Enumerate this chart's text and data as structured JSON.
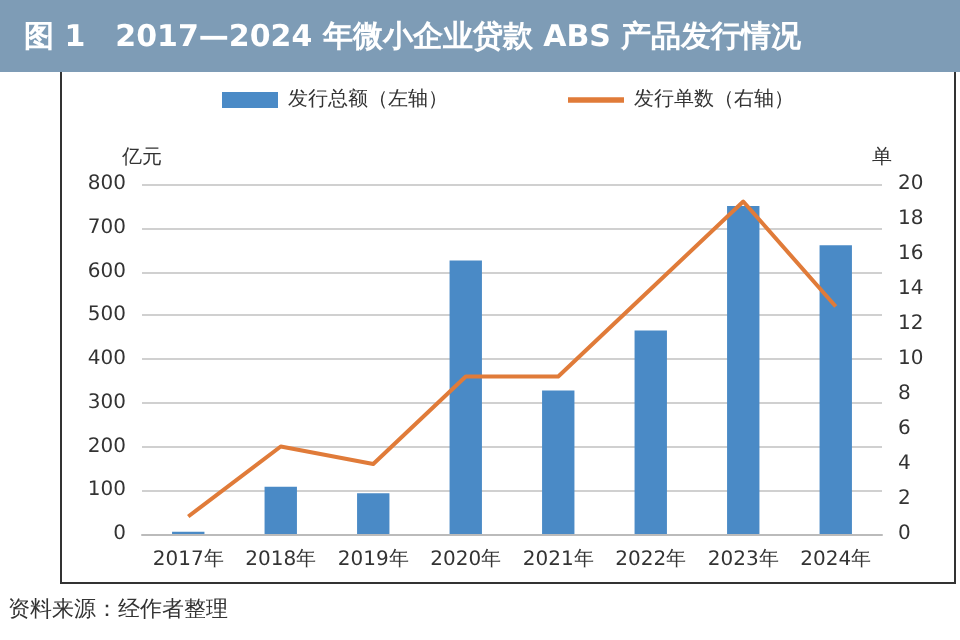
{
  "chart_data": {
    "type": "bar",
    "title": "图 1　2017—2024 年微小企业贷款 ABS 产品发行情况",
    "categories": [
      "2017年",
      "2018年",
      "2019年",
      "2020年",
      "2021年",
      "2022年",
      "2023年",
      "2024年"
    ],
    "series": [
      {
        "name": "发行总额（左轴）",
        "color": "#4a8ac6",
        "values": [
          5,
          108,
          93,
          625,
          328,
          465,
          750,
          660
        ]
      },
      {
        "name": "发行单数（右轴）",
        "type": "line",
        "axis": "y2",
        "color": "#e07b39",
        "values": [
          1,
          5,
          4,
          9,
          9,
          14,
          19,
          13
        ]
      }
    ],
    "ylabel": "亿元",
    "y2label": "单",
    "ylim": [
      0,
      800
    ],
    "yticks": [
      0,
      100,
      200,
      300,
      400,
      500,
      600,
      700,
      800
    ],
    "y2lim": [
      0,
      20
    ],
    "y2ticks": [
      0,
      2,
      4,
      6,
      8,
      10,
      12,
      14,
      16,
      18,
      20
    ],
    "grid": "y",
    "legend": "top",
    "marker": "none",
    "annotations": [
      "资料来源：经作者整理"
    ]
  }
}
